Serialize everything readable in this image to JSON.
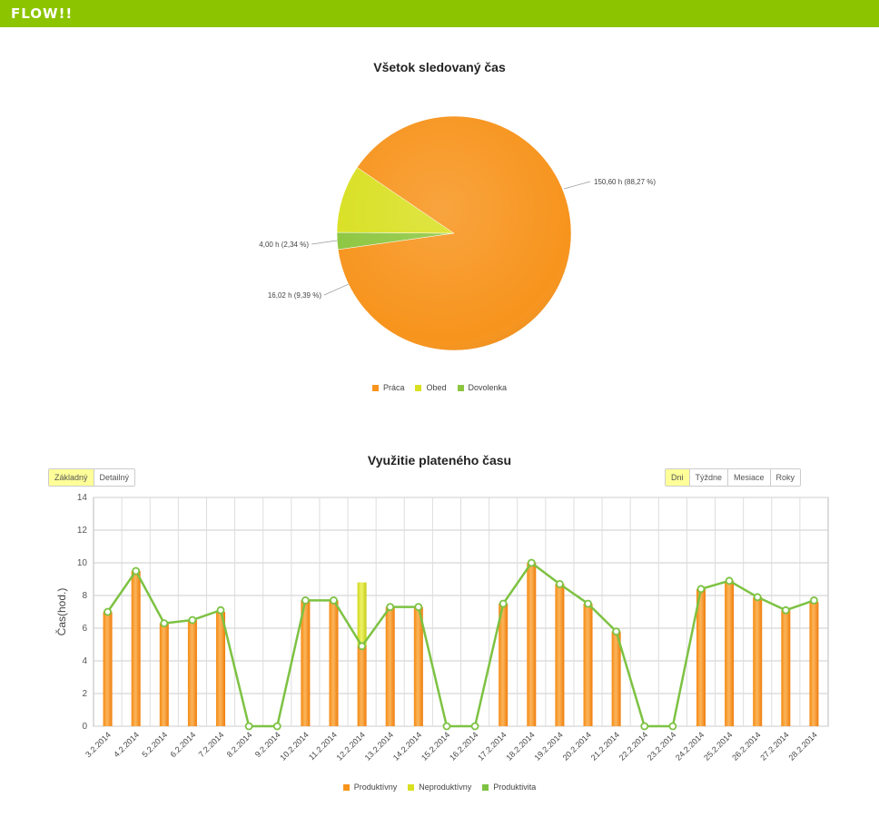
{
  "header": {
    "logo": "FLOW!!"
  },
  "pie_chart": {
    "chart_data": {
      "type": "pie",
      "title": "Všetok sledovaný čas",
      "slices": [
        {
          "name": "Práca",
          "value": 150.6,
          "label": "150,60 h (88,27 %)",
          "color": "#f7941d"
        },
        {
          "name": "Obed",
          "value": 16.02,
          "label": "16,02 h (9,39 %)",
          "color": "#d9e021"
        },
        {
          "name": "Dovolenka",
          "value": 4.0,
          "label": "4,00 h (2,34 %)",
          "color": "#8cc63f"
        }
      ],
      "legend": [
        "Práca",
        "Obed",
        "Dovolenka"
      ]
    }
  },
  "bar_chart": {
    "buttons_left": [
      {
        "label": "Základný",
        "active": true
      },
      {
        "label": "Detailný",
        "active": false
      }
    ],
    "buttons_right": [
      {
        "label": "Dni",
        "active": true
      },
      {
        "label": "Týždne",
        "active": false
      },
      {
        "label": "Mesiace",
        "active": false
      },
      {
        "label": "Roky",
        "active": false
      }
    ],
    "chart_data": {
      "type": "bar",
      "title": "Využitie plateného času",
      "ylabel": "Čas(hod.)",
      "ylim": [
        0,
        14
      ],
      "yticks": [
        0,
        2,
        4,
        6,
        8,
        10,
        12,
        14
      ],
      "categories": [
        "3.2.2014",
        "4.2.2014",
        "5.2.2014",
        "6.2.2014",
        "7.2.2014",
        "8.2.2014",
        "9.2.2014",
        "10.2.2014",
        "11.2.2014",
        "12.2.2014",
        "13.2.2014",
        "14.2.2014",
        "15.2.2014",
        "16.2.2014",
        "17.2.2014",
        "18.2.2014",
        "19.2.2014",
        "20.2.2014",
        "21.2.2014",
        "22.2.2014",
        "23.2.2014",
        "24.2.2014",
        "25.2.2014",
        "26.2.2014",
        "27.2.2014",
        "28.2.2014"
      ],
      "series": [
        {
          "name": "Produktívny",
          "type": "bar",
          "color": "#f7941d",
          "values": [
            7.0,
            9.5,
            6.3,
            6.5,
            7.0,
            0,
            0,
            7.7,
            7.7,
            4.9,
            7.3,
            7.3,
            0,
            0,
            7.5,
            10.0,
            8.7,
            7.5,
            5.8,
            0,
            0,
            8.4,
            8.9,
            7.9,
            7.1,
            7.6
          ]
        },
        {
          "name": "Neproduktívny",
          "type": "bar",
          "color": "#d9e021",
          "values": [
            0,
            0,
            0,
            0,
            0,
            0,
            0,
            0,
            0,
            3.9,
            0,
            0,
            0,
            0,
            0,
            0,
            0,
            0,
            0,
            0,
            0,
            0,
            0,
            0,
            0,
            0
          ]
        },
        {
          "name": "Produktivita",
          "type": "line",
          "color": "#7dc242",
          "values": [
            7.0,
            9.5,
            6.3,
            6.5,
            7.1,
            0,
            0,
            7.7,
            7.7,
            4.9,
            7.3,
            7.3,
            0,
            0,
            7.5,
            10.0,
            8.7,
            7.5,
            5.8,
            0,
            0,
            8.4,
            8.9,
            7.9,
            7.1,
            7.7
          ]
        }
      ],
      "legend": [
        "Produktívny",
        "Neproduktívny",
        "Produktivita"
      ]
    }
  }
}
